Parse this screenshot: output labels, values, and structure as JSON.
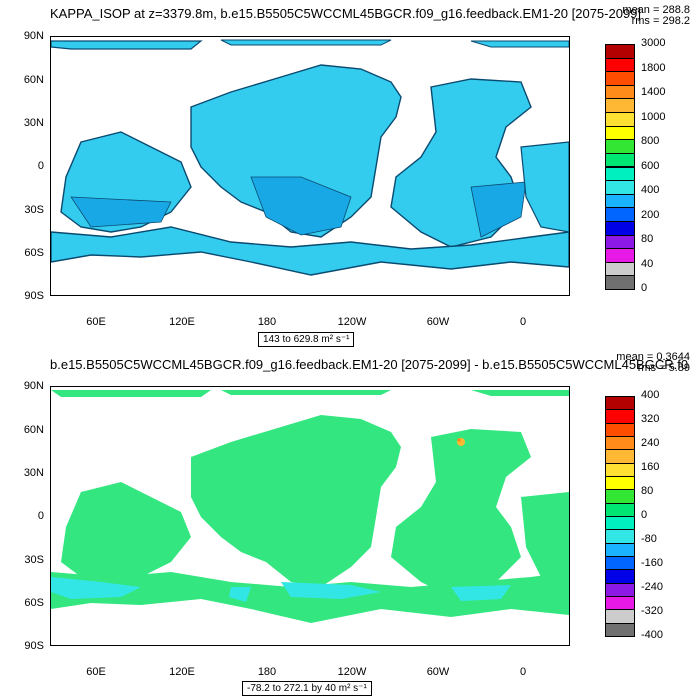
{
  "panel1": {
    "title": "KAPPA_ISOP at z=3379.8m, b.e15.B5505C5WCCML45BGCR.f09_g16.feedback.EM1-20 [2075-2099]",
    "stat_mean": "mean = 288.8",
    "stat_rms": "rms = 298.2",
    "range_label": "143 to 629.8 m² s⁻¹",
    "y_ticks": [
      "90N",
      "60N",
      "30N",
      "0",
      "30S",
      "60S",
      "90S"
    ],
    "x_ticks": [
      "60E",
      "120E",
      "180",
      "120W",
      "60W",
      "0"
    ],
    "colorbar": {
      "labels": [
        "3000",
        "1800",
        "1400",
        "1000",
        "800",
        "600",
        "400",
        "200",
        "80",
        "40",
        "0"
      ],
      "colors": [
        "#b30000",
        "#ff0000",
        "#ff4d00",
        "#ff8c1a",
        "#ffb833",
        "#ffe033",
        "#ffff00",
        "#33e633",
        "#00e673",
        "#00f0c0",
        "#33e6e6",
        "#19b3ff",
        "#0066ff",
        "#0000e6",
        "#8c19e6",
        "#e619e6",
        "#cccccc",
        "#707070"
      ]
    }
  },
  "panel2": {
    "title": "b.e15.B5505C5WCCML45BGCR.f09_g16.feedback.EM1-20 [2075-2099] - b.e15.B5505C5WCCML45BGCR.f0",
    "stat_mean": "mean = 0.3644",
    "stat_rms": "rms = 5.89",
    "range_label": "-78.2 to 272.1 by 40 m² s⁻¹",
    "y_ticks": [
      "90N",
      "60N",
      "30N",
      "0",
      "30S",
      "60S",
      "90S"
    ],
    "x_ticks": [
      "60E",
      "120E",
      "180",
      "120W",
      "60W",
      "0"
    ],
    "colorbar": {
      "labels": [
        "400",
        "320",
        "240",
        "160",
        "80",
        "0",
        "-80",
        "-160",
        "-240",
        "-320",
        "-400"
      ],
      "colors": [
        "#b30000",
        "#ff0000",
        "#ff4d00",
        "#ff8c1a",
        "#ffb833",
        "#ffe033",
        "#ffff00",
        "#33e633",
        "#00e673",
        "#00f0c0",
        "#33e6e6",
        "#19b3ff",
        "#0066ff",
        "#0000e6",
        "#8c19e6",
        "#e619e6",
        "#cccccc",
        "#707070"
      ]
    }
  },
  "colors": {
    "ocean_fill_top": "#33ccee",
    "ocean_fill_top_dark": "#19a8e6",
    "ocean_fill_bottom": "#33e680",
    "ocean_fill_bottom_cyan": "#33e6e6",
    "land": "#ffffff"
  }
}
